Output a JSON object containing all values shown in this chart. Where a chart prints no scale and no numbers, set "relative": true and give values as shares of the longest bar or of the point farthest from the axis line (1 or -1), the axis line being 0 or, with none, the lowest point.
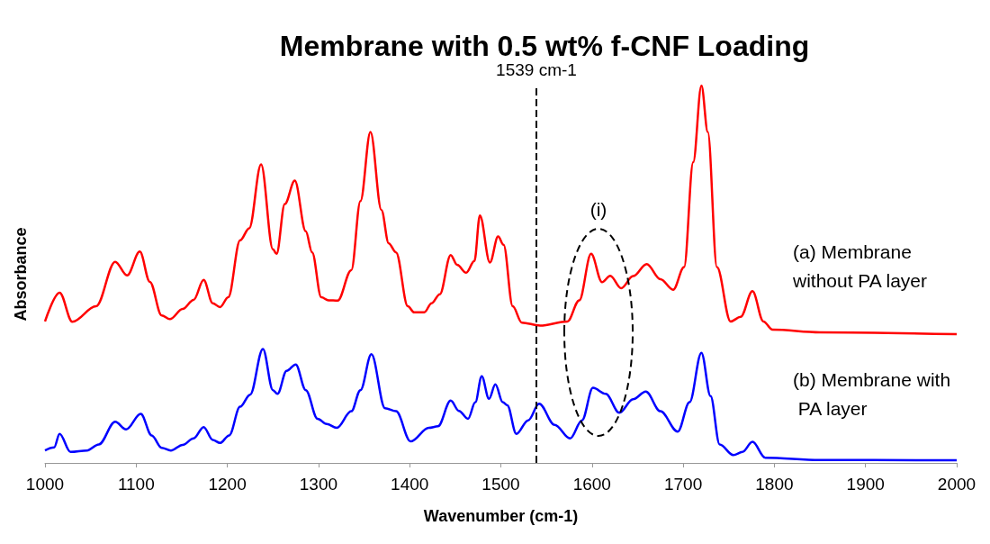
{
  "chart_data": {
    "type": "line",
    "title": "Membrane with 0.5 wt% f-CNF Loading",
    "xlabel": "Wavenumber (cm-1)",
    "ylabel": "Absorbance",
    "relative": true,
    "xlim": [
      1000,
      2000
    ],
    "xticks": [
      1000,
      1100,
      1200,
      1300,
      1400,
      1500,
      1600,
      1700,
      1800,
      1900,
      2000
    ],
    "grid": false,
    "legend": false,
    "marker": "none",
    "line_style": "solid",
    "tick_labels": "x",
    "series": [
      {
        "name": "(a) Membrane without PA layer",
        "color": "#ff0000",
        "x": [
          1000,
          1016,
          1030,
          1056,
          1077,
          1090,
          1104,
          1115,
          1128,
          1137,
          1151,
          1163,
          1174,
          1184,
          1192,
          1201,
          1214,
          1224,
          1237,
          1250,
          1254,
          1263,
          1274,
          1286,
          1293,
          1303,
          1311,
          1321,
          1336,
          1346,
          1357,
          1369,
          1377,
          1385,
          1398,
          1405,
          1416,
          1424,
          1433,
          1445,
          1452,
          1462,
          1471,
          1477,
          1488,
          1497,
          1503,
          1513,
          1523,
          1543,
          1573,
          1586,
          1599,
          1611,
          1620,
          1632,
          1645,
          1660,
          1675,
          1689,
          1701,
          1711,
          1720,
          1727,
          1737,
          1752,
          1763,
          1776,
          1788,
          1798,
          1850,
          2000
        ],
        "values": [
          0.375,
          0.451,
          0.374,
          0.415,
          0.533,
          0.497,
          0.56,
          0.48,
          0.391,
          0.381,
          0.408,
          0.432,
          0.485,
          0.423,
          0.413,
          0.439,
          0.59,
          0.622,
          0.791,
          0.566,
          0.554,
          0.686,
          0.748,
          0.614,
          0.558,
          0.439,
          0.431,
          0.43,
          0.511,
          0.694,
          0.877,
          0.67,
          0.582,
          0.558,
          0.415,
          0.399,
          0.399,
          0.423,
          0.447,
          0.551,
          0.525,
          0.504,
          0.535,
          0.656,
          0.531,
          0.6,
          0.578,
          0.415,
          0.372,
          0.364,
          0.375,
          0.431,
          0.554,
          0.479,
          0.496,
          0.463,
          0.495,
          0.527,
          0.487,
          0.459,
          0.519,
          0.797,
          1.0,
          0.877,
          0.519,
          0.375,
          0.387,
          0.455,
          0.375,
          0.353,
          0.346,
          0.341
        ]
      },
      {
        "name": "(b) Membrane with PA layer",
        "color": "#0000ff",
        "x": [
          1000,
          1010,
          1016,
          1028,
          1046,
          1059,
          1077,
          1089,
          1105,
          1117,
          1128,
          1138,
          1151,
          1163,
          1174,
          1184,
          1192,
          1202,
          1214,
          1225,
          1239,
          1250,
          1255,
          1265,
          1275,
          1286,
          1299,
          1309,
          1320,
          1336,
          1346,
          1358,
          1373,
          1385,
          1401,
          1421,
          1431,
          1445,
          1454,
          1464,
          1472,
          1479,
          1487,
          1494,
          1502,
          1507,
          1517,
          1530,
          1542,
          1559,
          1576,
          1589,
          1601,
          1615,
          1630,
          1645,
          1659,
          1675,
          1694,
          1707,
          1720,
          1730,
          1740,
          1755,
          1765,
          1776,
          1790,
          1850,
          2000
        ],
        "values": [
          0.033,
          0.041,
          0.077,
          0.029,
          0.033,
          0.049,
          0.109,
          0.089,
          0.13,
          0.073,
          0.04,
          0.033,
          0.048,
          0.065,
          0.095,
          0.061,
          0.053,
          0.073,
          0.149,
          0.181,
          0.302,
          0.193,
          0.183,
          0.244,
          0.261,
          0.193,
          0.117,
          0.103,
          0.093,
          0.137,
          0.193,
          0.288,
          0.145,
          0.137,
          0.057,
          0.093,
          0.097,
          0.165,
          0.138,
          0.117,
          0.161,
          0.23,
          0.17,
          0.208,
          0.161,
          0.153,
          0.077,
          0.113,
          0.157,
          0.101,
          0.065,
          0.113,
          0.199,
          0.183,
          0.133,
          0.169,
          0.189,
          0.137,
          0.083,
          0.161,
          0.292,
          0.177,
          0.049,
          0.021,
          0.029,
          0.056,
          0.014,
          0.008,
          0.007
        ]
      }
    ],
    "ref_lines": [
      {
        "axis": "x",
        "value": 1539,
        "label": "1539 cm-1",
        "color": "#000000",
        "line_style": "dashed"
      }
    ],
    "annotations": [
      "(i)"
    ]
  }
}
